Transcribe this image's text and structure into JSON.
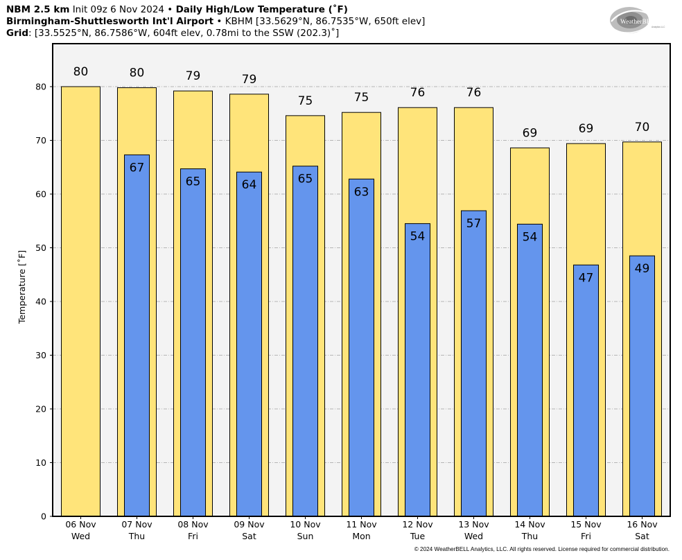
{
  "header": {
    "model": "NBM 2.5 km",
    "init": "Init 09z 6 Nov 2024",
    "sep": "•",
    "product": "Daily High/Low Temperature (˚F)",
    "station_name": "Birmingham-Shuttlesworth Int'l Airport",
    "station_details": "KBHM [33.5629°N, 86.7535°W, 650ft elev]",
    "grid_label": "Grid",
    "grid_details": ": [33.5525°N, 86.7586°W, 604ft elev, 0.78mi to the SSW (202.3)˚]"
  },
  "logo": {
    "text_main": "WeatherBELL",
    "text_sub": "Analytics LLC"
  },
  "footer": {
    "copyright": "© 2024 WeatherBELL Analytics, LLC. All rights reserved. License required for commercial distribution."
  },
  "chart_data": {
    "type": "bar",
    "title": "Daily High/Low Temperature (˚F)",
    "ylabel": "Temperature [˚F]",
    "ylim": [
      0,
      88
    ],
    "yticks": [
      0,
      10,
      20,
      30,
      40,
      50,
      60,
      70,
      80
    ],
    "grid": true,
    "categories": [
      [
        "06 Nov",
        "Wed"
      ],
      [
        "07 Nov",
        "Thu"
      ],
      [
        "08 Nov",
        "Fri"
      ],
      [
        "09 Nov",
        "Sat"
      ],
      [
        "10 Nov",
        "Sun"
      ],
      [
        "11 Nov",
        "Mon"
      ],
      [
        "12 Nov",
        "Tue"
      ],
      [
        "13 Nov",
        "Wed"
      ],
      [
        "14 Nov",
        "Thu"
      ],
      [
        "15 Nov",
        "Fri"
      ],
      [
        "16 Nov",
        "Sat"
      ]
    ],
    "series": [
      {
        "color": "#FFE47A",
        "values": [
          80,
          79.8,
          79.2,
          78.6,
          74.6,
          75.2,
          76.1,
          76.1,
          68.6,
          69.4,
          69.7
        ],
        "labels": [
          "80",
          "80",
          "79",
          "79",
          "75",
          "75",
          "76",
          "76",
          "69",
          "69",
          "70"
        ]
      },
      {
        "color": "#6495ED",
        "values": [
          null,
          67.3,
          64.7,
          64.1,
          65.2,
          62.8,
          54.5,
          56.9,
          54.4,
          46.8,
          48.5
        ],
        "labels": [
          null,
          "67",
          "65",
          "64",
          "65",
          "63",
          "54",
          "57",
          "54",
          "47",
          "49"
        ]
      }
    ]
  }
}
